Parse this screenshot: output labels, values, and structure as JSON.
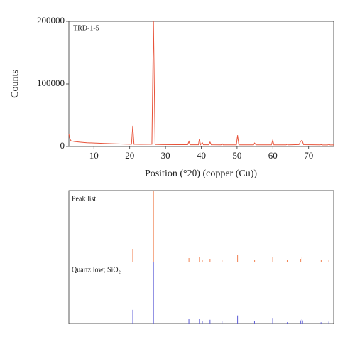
{
  "chart_data": [
    {
      "type": "line",
      "title": "TRD-1-5",
      "xlabel": "Position (°2θ) (copper (Cu))",
      "ylabel": "Counts",
      "color": "#e8533a",
      "x": [
        3,
        3.3,
        3.6,
        4.5,
        6,
        8,
        10,
        13,
        16,
        19,
        20.5,
        20.85,
        21.2,
        23,
        26.2,
        26.64,
        27.1,
        29,
        33,
        36.2,
        36.55,
        36.9,
        39.2,
        39.47,
        39.8,
        40.3,
        40.6,
        42.1,
        42.45,
        42.8,
        45.5,
        45.8,
        46.1,
        49.8,
        50.14,
        50.5,
        54.6,
        54.9,
        55.3,
        59.6,
        59.96,
        60.3,
        63.7,
        64.0,
        64.3,
        67.3,
        67.75,
        68.15,
        68.6,
        73.2,
        73.5,
        73.8,
        75.3,
        75.65,
        76,
        77
      ],
      "values": [
        20000,
        12000,
        9000,
        8000,
        7000,
        6000,
        5500,
        4800,
        4200,
        3700,
        3600,
        33000,
        3500,
        3400,
        3500,
        200000,
        3300,
        3000,
        2800,
        2800,
        8000,
        2700,
        2700,
        12000,
        2800,
        6000,
        2700,
        2700,
        7000,
        2700,
        2600,
        4500,
        2600,
        2600,
        18000,
        2600,
        2600,
        5500,
        2600,
        2600,
        10000,
        2600,
        2500,
        3500,
        2500,
        3000,
        8000,
        10000,
        2800,
        2500,
        3000,
        2400,
        2400,
        3500,
        2400,
        2400
      ],
      "xlim": [
        3,
        77
      ],
      "ylim": [
        0,
        200000
      ],
      "xticks": [
        10,
        20,
        30,
        40,
        50,
        60,
        70
      ],
      "yticks": [
        0,
        100000,
        200000
      ]
    },
    {
      "type": "stick",
      "xlim": [
        3,
        77
      ],
      "ylim": [
        0,
        100
      ],
      "series": [
        {
          "name": "Peak list",
          "color": "#f08050",
          "x": [
            20.85,
            26.64,
            36.55,
            39.47,
            40.3,
            42.45,
            45.8,
            50.14,
            54.9,
            59.96,
            64.0,
            67.75,
            68.15,
            73.5,
            75.65
          ],
          "values": [
            18,
            100,
            5,
            6,
            2,
            4,
            2,
            9,
            3,
            6,
            2,
            4,
            6,
            2,
            2
          ]
        },
        {
          "name": "Quartz low; SiO₂",
          "color": "#5b5bd6",
          "x": [
            20.86,
            26.64,
            36.54,
            39.47,
            40.29,
            42.45,
            45.79,
            50.14,
            54.87,
            59.95,
            64.0,
            67.74,
            68.14,
            68.31,
            73.46,
            75.65
          ],
          "values": [
            22,
            100,
            8,
            8,
            4,
            6,
            4,
            13,
            4,
            9,
            2,
            5,
            7,
            5,
            2,
            3
          ]
        }
      ]
    }
  ]
}
